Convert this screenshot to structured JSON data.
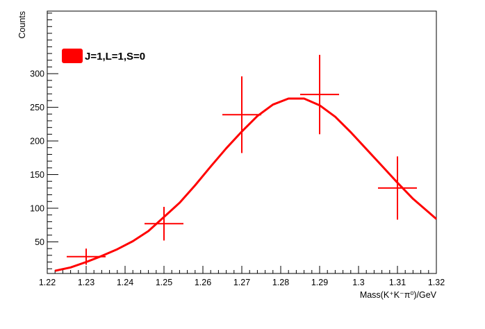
{
  "chart_data": {
    "type": "scatter",
    "title": "",
    "xlabel": "Mass(K⁺K⁻π⁰)/GeV",
    "ylabel": "Counts",
    "xlim": [
      1.22,
      1.32
    ],
    "ylim": [
      3,
      393
    ],
    "x_ticks": [
      1.22,
      1.23,
      1.24,
      1.25,
      1.26,
      1.27,
      1.28,
      1.29,
      1.3,
      1.31,
      1.32
    ],
    "x_tick_labels": [
      "1.22",
      "1.23",
      "1.24",
      "1.25",
      "1.26",
      "1.27",
      "1.28",
      "1.29",
      "1.3",
      "1.31",
      "1.32"
    ],
    "y_ticks": [
      50,
      100,
      150,
      200,
      250,
      300
    ],
    "y_tick_labels": [
      "50",
      "100",
      "150",
      "200",
      "250",
      "300"
    ],
    "grid": false,
    "legend_position": "top-left",
    "colors": {
      "series": "#ff0000",
      "axis": "#000000"
    },
    "series": [
      {
        "name": "J=1,L=1,S=0",
        "kind": "histogram-with-errors",
        "points": [
          {
            "x": 1.23,
            "x_err": 0.005,
            "y": 28,
            "y_err": 12
          },
          {
            "x": 1.25,
            "x_err": 0.005,
            "y": 77,
            "y_err": 25
          },
          {
            "x": 1.27,
            "x_err": 0.005,
            "y": 239,
            "y_err": 57
          },
          {
            "x": 1.29,
            "x_err": 0.005,
            "y": 269,
            "y_err": 59
          },
          {
            "x": 1.31,
            "x_err": 0.005,
            "y": 130,
            "y_err": 47
          }
        ]
      },
      {
        "kind": "fit-curve",
        "points": [
          [
            1.222,
            7
          ],
          [
            1.226,
            12
          ],
          [
            1.23,
            20
          ],
          [
            1.234,
            29
          ],
          [
            1.238,
            39
          ],
          [
            1.242,
            51
          ],
          [
            1.246,
            66
          ],
          [
            1.25,
            87
          ],
          [
            1.254,
            108
          ],
          [
            1.258,
            134
          ],
          [
            1.262,
            162
          ],
          [
            1.266,
            189
          ],
          [
            1.27,
            214
          ],
          [
            1.274,
            237
          ],
          [
            1.278,
            254
          ],
          [
            1.282,
            263
          ],
          [
            1.286,
            263
          ],
          [
            1.29,
            253
          ],
          [
            1.294,
            236
          ],
          [
            1.298,
            213
          ],
          [
            1.302,
            188
          ],
          [
            1.306,
            163
          ],
          [
            1.31,
            138
          ],
          [
            1.314,
            114
          ],
          [
            1.318,
            94
          ],
          [
            1.32,
            84
          ]
        ]
      }
    ]
  }
}
